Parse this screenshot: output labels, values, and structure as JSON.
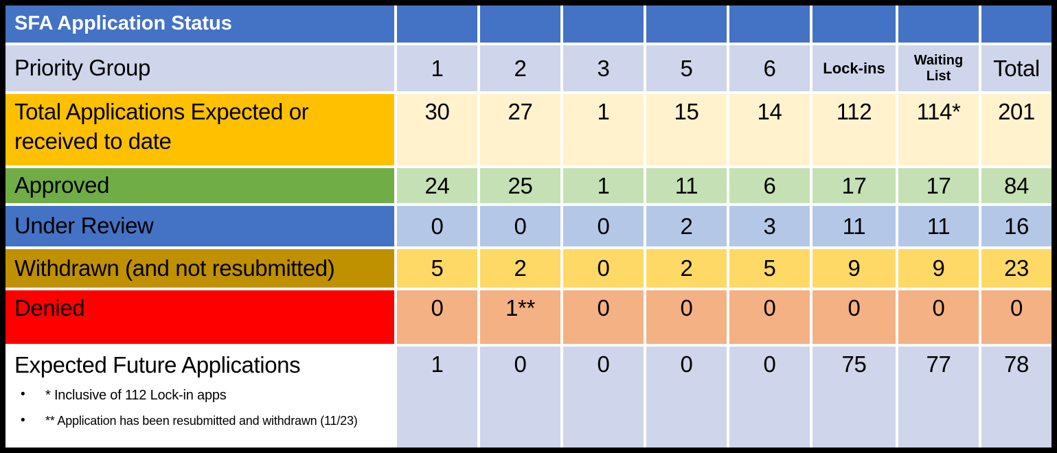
{
  "title": "SFA Application Status",
  "priority_header": {
    "label": "Priority Group",
    "columns": [
      "1",
      "2",
      "3",
      "5",
      "6",
      "Lock-ins",
      "Waiting List",
      "Total"
    ]
  },
  "rows": [
    {
      "label": "Total Applications Expected or received to date",
      "values": [
        "30",
        "27",
        "1",
        "15",
        "14",
        "112",
        "114*",
        "201"
      ]
    },
    {
      "label": "Approved",
      "values": [
        "24",
        "25",
        "1",
        "11",
        "6",
        "17",
        "17",
        "84"
      ]
    },
    {
      "label": "Under Review",
      "values": [
        "0",
        "0",
        "0",
        "2",
        "3",
        "11",
        "11",
        "16"
      ]
    },
    {
      "label": "Withdrawn (and not resubmitted)",
      "values": [
        "5",
        "2",
        "0",
        "2",
        "5",
        "9",
        "9",
        "23"
      ]
    },
    {
      "label": "Denied",
      "values": [
        "0",
        "1**",
        "0",
        "0",
        "0",
        "0",
        "0",
        "0"
      ]
    },
    {
      "label": "Expected Future Applications",
      "values": [
        "1",
        "0",
        "0",
        "0",
        "0",
        "75",
        "77",
        "78"
      ],
      "footnotes": [
        "* Inclusive of 112 Lock-in apps",
        "** Application has been resubmitted and withdrawn (11/23)"
      ],
      "footnote_bullet": "•"
    }
  ],
  "colors": {
    "header_blue": "#4472C4",
    "lavender_row": "#CFD5EA",
    "total_apps_label_gold": "#FFC000",
    "total_apps_cells_cream": "#FFF2CC",
    "approved_label_green": "#70AD47",
    "approved_cells_light_green": "#C5E0B4",
    "under_review_label_blue": "#4472C4",
    "under_review_cells_light_blue": "#B4C7E7",
    "withdrawn_label_dark_gold": "#BF9000",
    "withdrawn_cells_light_gold": "#FFD966",
    "denied_label_red": "#FF0000",
    "denied_cells_salmon": "#F4B183",
    "outer_border_black": "#000000",
    "cell_gap_white": "#FFFFFF",
    "title_text": "#FFFFFF",
    "body_text": "#000000"
  }
}
